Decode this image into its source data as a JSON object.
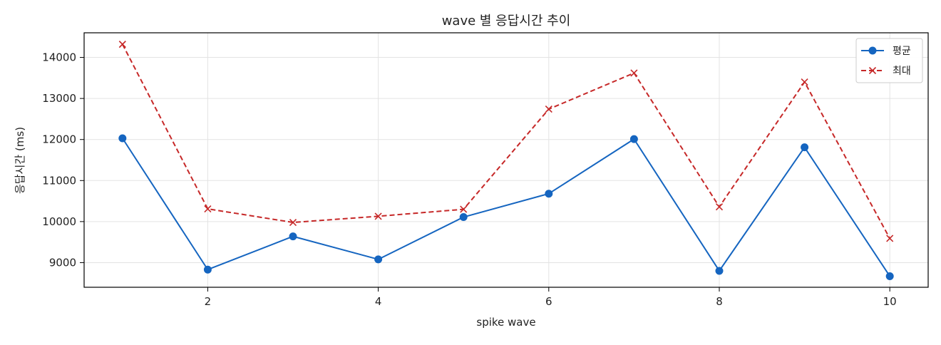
{
  "chart_data": {
    "type": "line",
    "title": "wave 별 응답시간 추이",
    "xlabel": "spike wave",
    "ylabel": "응답시간 (ms)",
    "x": [
      1,
      2,
      3,
      4,
      5,
      6,
      7,
      8,
      9,
      10
    ],
    "xlim": [
      0.55,
      10.45
    ],
    "ylim": [
      8400,
      14600
    ],
    "xticks": [
      2,
      4,
      6,
      8,
      10
    ],
    "yticks": [
      9000,
      10000,
      11000,
      12000,
      13000,
      14000
    ],
    "grid": true,
    "legend_position": "top-right",
    "series": [
      {
        "name": "평균",
        "color": "#1565c0",
        "line_style": "solid",
        "marker": "circle",
        "values": [
          12030,
          8830,
          9640,
          9080,
          10110,
          10680,
          12010,
          8800,
          11810,
          8670
        ]
      },
      {
        "name": "최대",
        "color": "#c62828",
        "line_style": "dashed",
        "marker": "x",
        "values": [
          14320,
          10310,
          9980,
          10130,
          10300,
          12740,
          13620,
          10360,
          13400,
          9590
        ]
      }
    ]
  }
}
